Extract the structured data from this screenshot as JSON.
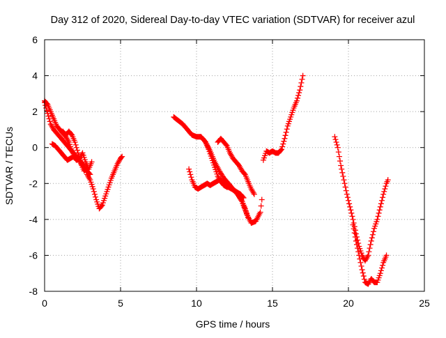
{
  "chart_data": {
    "type": "scatter",
    "title": "Day 312 of 2020, Sidereal Day-to-day VTEC variation (SDTVAR) for receiver azul",
    "xlabel": "GPS time / hours",
    "ylabel": "SDTVAR / TECUs",
    "xlim": [
      0,
      25
    ],
    "ylim": [
      -8,
      6
    ],
    "xticks": [
      0,
      5,
      10,
      15,
      20,
      25
    ],
    "yticks": [
      -8,
      -6,
      -4,
      -2,
      0,
      2,
      4,
      6
    ],
    "grid": true,
    "marker": "plus",
    "color": "#ff0000",
    "segments": [
      {
        "x": [
          0.0,
          0.2,
          0.4,
          0.6,
          0.8,
          1.0,
          1.2,
          1.4,
          1.6,
          1.8,
          2.0,
          2.2,
          2.4,
          2.6,
          2.8,
          3.0,
          3.2,
          3.4,
          3.6,
          3.8,
          4.0,
          4.2,
          4.4,
          4.6,
          4.8,
          5.0,
          5.1
        ],
        "y": [
          2.6,
          2.4,
          2.0,
          1.6,
          1.2,
          1.0,
          0.8,
          0.6,
          0.3,
          -0.2,
          -0.5,
          -0.6,
          -0.8,
          -1.0,
          -1.5,
          -1.8,
          -2.3,
          -2.9,
          -3.4,
          -3.2,
          -2.7,
          -2.2,
          -1.7,
          -1.3,
          -0.9,
          -0.6,
          -0.5
        ]
      },
      {
        "x": [
          0.0,
          0.2,
          0.4,
          0.6,
          0.8,
          1.0,
          1.2,
          1.4,
          1.6,
          1.8,
          2.0,
          2.2,
          2.4,
          2.6,
          2.8,
          3.0
        ],
        "y": [
          2.5,
          1.9,
          1.3,
          1.0,
          0.8,
          0.6,
          0.4,
          0.2,
          0.0,
          -0.2,
          -0.4,
          -0.6,
          -0.9,
          -1.1,
          -1.3,
          -1.5
        ]
      },
      {
        "x": [
          0.5,
          0.7,
          0.9,
          1.1,
          1.3,
          1.5,
          1.7,
          1.9,
          2.1,
          2.3,
          2.5,
          2.7,
          2.9,
          3.1
        ],
        "y": [
          0.2,
          0.1,
          -0.1,
          -0.3,
          -0.5,
          -0.7,
          -0.6,
          -0.5,
          -0.7,
          -0.6,
          -0.3,
          -0.8,
          -1.2,
          -0.8
        ]
      },
      {
        "x": [
          1.2,
          1.4,
          1.6,
          1.8,
          2.0,
          2.2,
          2.4,
          2.6,
          2.8
        ],
        "y": [
          0.9,
          0.7,
          0.9,
          0.7,
          0.3,
          -0.3,
          -0.9,
          -1.3,
          -1.1
        ]
      },
      {
        "x": [
          8.5,
          8.8,
          9.1,
          9.4,
          9.7,
          10.0,
          10.3,
          10.6,
          10.9,
          11.2,
          11.5,
          11.8,
          12.1,
          12.4,
          12.7,
          13.0,
          13.3,
          13.6,
          13.9,
          14.2,
          14.3
        ],
        "y": [
          1.7,
          1.5,
          1.3,
          1.0,
          0.7,
          0.6,
          0.6,
          0.3,
          -0.2,
          -0.8,
          -1.3,
          -1.7,
          -2.0,
          -2.3,
          -2.6,
          -3.0,
          -3.7,
          -4.2,
          -4.1,
          -3.6,
          -2.9
        ]
      },
      {
        "x": [
          9.5,
          9.7,
          9.9,
          10.1,
          10.3,
          10.5,
          10.7,
          10.9,
          11.1,
          11.3,
          11.5,
          11.7,
          11.9,
          12.1,
          12.3,
          12.5,
          12.7,
          12.9,
          13.1
        ],
        "y": [
          -1.2,
          -1.8,
          -2.2,
          -2.3,
          -2.2,
          -2.1,
          -2.0,
          -2.1,
          -2.0,
          -1.9,
          -1.8,
          -1.9,
          -2.1,
          -2.2,
          -2.3,
          -2.4,
          -2.5,
          -2.6,
          -2.8
        ]
      },
      {
        "x": [
          10.4,
          10.6,
          10.8,
          11.0,
          11.2,
          11.4,
          11.6,
          11.8,
          12.0,
          12.2,
          12.4,
          12.6,
          12.8,
          13.0,
          13.2,
          13.4
        ],
        "y": [
          0.5,
          0.3,
          -0.1,
          -0.6,
          -1.1,
          -1.6,
          -1.9,
          -2.1,
          -2.2,
          -2.2,
          -2.3,
          -2.5,
          -2.7,
          -3.0,
          -3.4,
          -3.9
        ]
      },
      {
        "x": [
          11.4,
          11.6,
          11.8,
          12.0,
          12.2,
          12.4,
          12.6,
          12.8,
          13.0,
          13.2,
          13.4,
          13.6,
          13.8
        ],
        "y": [
          0.3,
          0.5,
          0.3,
          0.1,
          -0.3,
          -0.6,
          -0.8,
          -1.0,
          -1.3,
          -1.5,
          -1.9,
          -2.3,
          -2.6
        ]
      },
      {
        "x": [
          14.4,
          14.6,
          14.8,
          15.0,
          15.2,
          15.4,
          15.6,
          15.8,
          16.0,
          16.2,
          16.4,
          16.6,
          16.8,
          17.0
        ],
        "y": [
          -0.7,
          -0.2,
          -0.3,
          -0.2,
          -0.3,
          -0.3,
          -0.1,
          0.5,
          1.2,
          1.7,
          2.2,
          2.6,
          3.2,
          4.0
        ]
      },
      {
        "x": [
          19.1,
          19.3,
          19.5,
          19.7,
          19.9,
          20.1,
          20.3,
          20.5,
          20.7,
          20.9,
          21.1,
          21.3,
          21.5,
          21.7,
          21.9,
          22.1,
          22.3,
          22.5,
          22.6
        ],
        "y": [
          0.6,
          0.0,
          -1.0,
          -1.8,
          -2.6,
          -3.3,
          -4.0,
          -4.8,
          -5.5,
          -6.0,
          -6.3,
          -6.0,
          -5.2,
          -4.5,
          -4.0,
          -3.3,
          -2.6,
          -2.0,
          -1.8
        ]
      },
      {
        "x": [
          20.3,
          20.5,
          20.7,
          20.9,
          21.1,
          21.3,
          21.5,
          21.7,
          21.9,
          22.1,
          22.3,
          22.5
        ],
        "y": [
          -4.3,
          -5.2,
          -6.0,
          -6.8,
          -7.5,
          -7.6,
          -7.3,
          -7.5,
          -7.5,
          -7.0,
          -6.4,
          -6.0
        ]
      }
    ]
  }
}
